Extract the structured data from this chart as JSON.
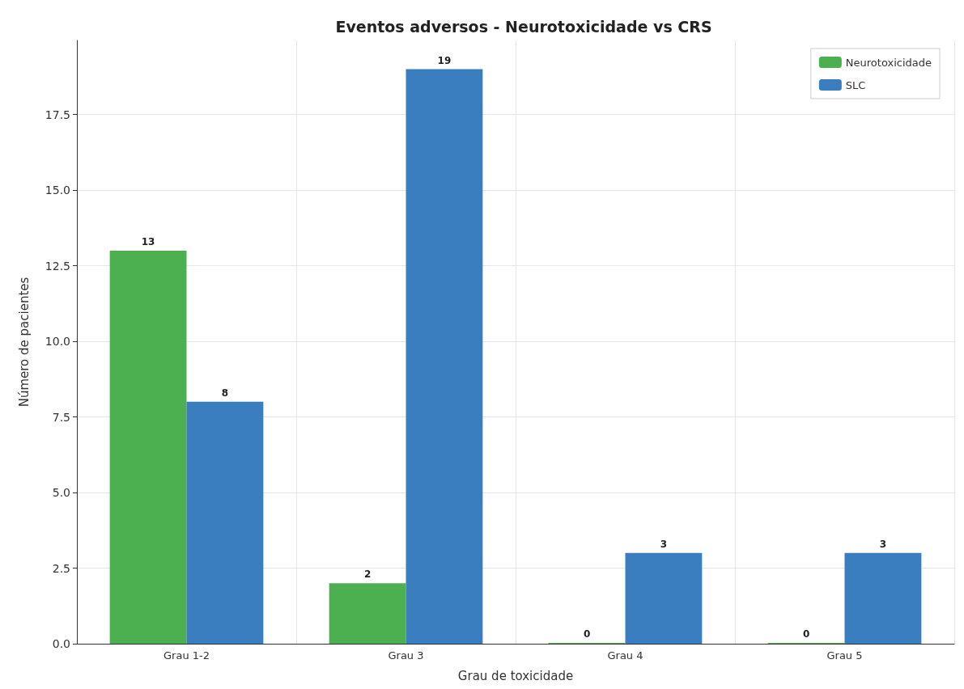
{
  "chart_data": {
    "type": "bar",
    "title": "Eventos adversos - Neurotoxicidade vs CRS",
    "xlabel": "Grau de toxicidade",
    "ylabel": "Número de pacientes",
    "categories": [
      "Grau 1-2",
      "Grau 3",
      "Grau 4",
      "Grau 5"
    ],
    "series": [
      {
        "name": "Neurotoxicidade",
        "color": "#4caf50",
        "values": [
          13,
          2,
          0,
          0
        ]
      },
      {
        "name": "SLC",
        "color": "#3a7ebf",
        "values": [
          8,
          19,
          3,
          3
        ]
      }
    ],
    "ylim": [
      0,
      19.95
    ],
    "yticks": [
      {
        "value": 0,
        "label": "0.0"
      },
      {
        "value": 2.5,
        "label": "2.5"
      },
      {
        "value": 5,
        "label": "5.0"
      },
      {
        "value": 7.5,
        "label": "7.5"
      },
      {
        "value": 10,
        "label": "10.0"
      },
      {
        "value": 12.5,
        "label": "12.5"
      },
      {
        "value": 15,
        "label": "15.0"
      },
      {
        "value": 17.5,
        "label": "17.5"
      }
    ],
    "grid": true,
    "legend": "top right",
    "data_labels": true
  }
}
